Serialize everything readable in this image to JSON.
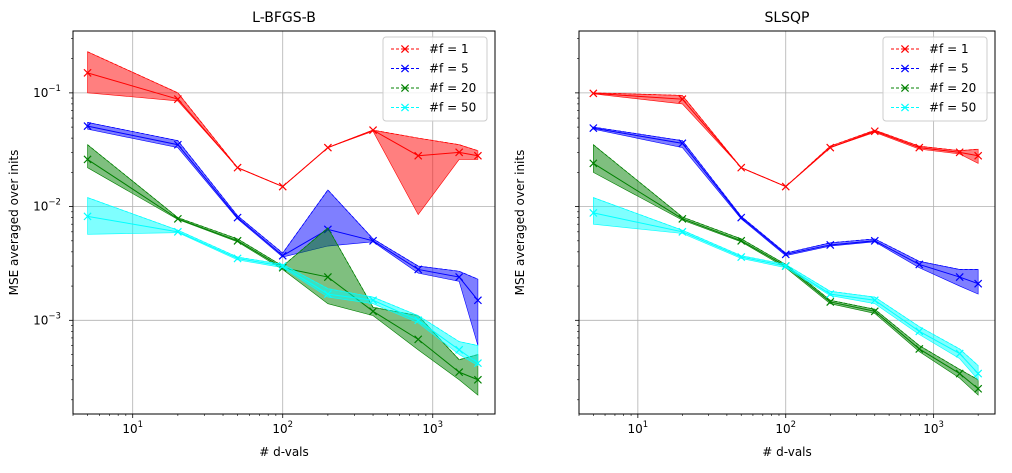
{
  "chart_data": [
    {
      "type": "line",
      "title": "L-BFGS-B",
      "xlabel": "# d-vals",
      "ylabel": "MSE averaged over inits",
      "xscale": "log",
      "yscale": "log",
      "xlim": [
        4,
        2600
      ],
      "ylim": [
        0.00015,
        0.35
      ],
      "xticks": [
        {
          "value": 10,
          "base": "10",
          "exp": "1"
        },
        {
          "value": 100,
          "base": "10",
          "exp": "2"
        },
        {
          "value": 1000,
          "base": "10",
          "exp": "3"
        }
      ],
      "yticks": [
        {
          "value": 0.001,
          "base": "10",
          "exp": "−3"
        },
        {
          "value": 0.01,
          "base": "10",
          "exp": "−2"
        },
        {
          "value": 0.1,
          "base": "10",
          "exp": "−1"
        }
      ],
      "grid": true,
      "legend_position": "top-right",
      "x": [
        5,
        20,
        50,
        100,
        200,
        400,
        800,
        1500,
        2000
      ],
      "series": [
        {
          "name": "#f = 1",
          "color": "#ff0000",
          "values": [
            0.15,
            0.088,
            0.022,
            0.015,
            0.033,
            0.047,
            0.028,
            0.03,
            0.028
          ],
          "upper": [
            0.23,
            0.1,
            0.022,
            0.015,
            0.033,
            0.047,
            0.04,
            0.035,
            0.031
          ],
          "lower": [
            0.1,
            0.085,
            0.022,
            0.015,
            0.033,
            0.046,
            0.0085,
            0.026,
            0.026
          ]
        },
        {
          "name": "#f = 5",
          "color": "#0000ff",
          "values": [
            0.051,
            0.035,
            0.008,
            0.0037,
            0.0063,
            0.005,
            0.0028,
            0.0024,
            0.0015
          ],
          "upper": [
            0.055,
            0.038,
            0.0083,
            0.0039,
            0.014,
            0.0052,
            0.003,
            0.0027,
            0.0023
          ],
          "lower": [
            0.048,
            0.033,
            0.0078,
            0.0036,
            0.0045,
            0.0049,
            0.0026,
            0.0022,
            0.0006
          ]
        },
        {
          "name": "#f = 20",
          "color": "#008000",
          "values": [
            0.026,
            0.0078,
            0.005,
            0.0029,
            0.0024,
            0.0012,
            0.00068,
            0.00035,
            0.0003
          ],
          "upper": [
            0.035,
            0.008,
            0.0052,
            0.003,
            0.0065,
            0.0013,
            0.0011,
            0.00045,
            0.0005
          ],
          "lower": [
            0.022,
            0.0077,
            0.0049,
            0.0028,
            0.0014,
            0.0011,
            0.00055,
            0.0003,
            0.00022
          ]
        },
        {
          "name": "#f = 50",
          "color": "#00ffff",
          "values": [
            0.0082,
            0.006,
            0.0035,
            0.003,
            0.0017,
            0.0015,
            0.001,
            0.00055,
            0.00042
          ],
          "upper": [
            0.012,
            0.0062,
            0.0036,
            0.0031,
            0.0019,
            0.0016,
            0.0011,
            0.00065,
            0.0006
          ],
          "lower": [
            0.0057,
            0.0059,
            0.0034,
            0.0029,
            0.0016,
            0.0014,
            0.00095,
            0.0005,
            0.0004
          ]
        }
      ]
    },
    {
      "type": "line",
      "title": "SLSQP",
      "xlabel": "# d-vals",
      "ylabel": "MSE averaged over inits",
      "xscale": "log",
      "yscale": "log",
      "xlim": [
        4,
        2600
      ],
      "ylim": [
        0.00015,
        0.35
      ],
      "xticks": [
        {
          "value": 10,
          "base": "10",
          "exp": "1"
        },
        {
          "value": 100,
          "base": "10",
          "exp": "2"
        },
        {
          "value": 1000,
          "base": "10",
          "exp": "3"
        }
      ],
      "yticks": [
        {
          "value": 0.001,
          "base": "10",
          "exp": "−3"
        },
        {
          "value": 0.01,
          "base": "10",
          "exp": "−2"
        },
        {
          "value": 0.1,
          "base": "10",
          "exp": "−1"
        }
      ],
      "show_ytick_labels": false,
      "grid": true,
      "legend_position": "top-right",
      "x": [
        5,
        20,
        50,
        100,
        200,
        400,
        800,
        1500,
        2000
      ],
      "series": [
        {
          "name": "#f = 1",
          "color": "#ff0000",
          "values": [
            0.099,
            0.088,
            0.022,
            0.015,
            0.033,
            0.046,
            0.033,
            0.03,
            0.028
          ],
          "upper": [
            0.1,
            0.095,
            0.022,
            0.015,
            0.034,
            0.047,
            0.034,
            0.031,
            0.032
          ],
          "lower": [
            0.098,
            0.08,
            0.022,
            0.015,
            0.033,
            0.045,
            0.032,
            0.029,
            0.024
          ]
        },
        {
          "name": "#f = 5",
          "color": "#0000ff",
          "values": [
            0.049,
            0.036,
            0.008,
            0.0038,
            0.0046,
            0.005,
            0.0031,
            0.0024,
            0.0021
          ],
          "upper": [
            0.05,
            0.038,
            0.0082,
            0.0039,
            0.0048,
            0.0052,
            0.0033,
            0.0028,
            0.0028
          ],
          "lower": [
            0.048,
            0.033,
            0.0078,
            0.0037,
            0.0045,
            0.0049,
            0.0029,
            0.002,
            0.0017
          ]
        },
        {
          "name": "#f = 20",
          "color": "#008000",
          "values": [
            0.024,
            0.0078,
            0.005,
            0.003,
            0.00145,
            0.0012,
            0.00056,
            0.00034,
            0.00025
          ],
          "upper": [
            0.035,
            0.0081,
            0.0052,
            0.0031,
            0.0015,
            0.00125,
            0.0006,
            0.00037,
            0.0003
          ],
          "lower": [
            0.02,
            0.0076,
            0.0049,
            0.0029,
            0.0014,
            0.00115,
            0.00053,
            0.00031,
            0.00022
          ]
        },
        {
          "name": "#f = 50",
          "color": "#00ffff",
          "values": [
            0.0088,
            0.006,
            0.0036,
            0.003,
            0.0017,
            0.0015,
            0.0008,
            0.00051,
            0.00034
          ],
          "upper": [
            0.012,
            0.0062,
            0.0037,
            0.0031,
            0.0018,
            0.0016,
            0.00088,
            0.00056,
            0.0004
          ],
          "lower": [
            0.007,
            0.0058,
            0.0035,
            0.0029,
            0.00165,
            0.0014,
            0.00075,
            0.00046,
            0.0003
          ]
        }
      ]
    }
  ]
}
